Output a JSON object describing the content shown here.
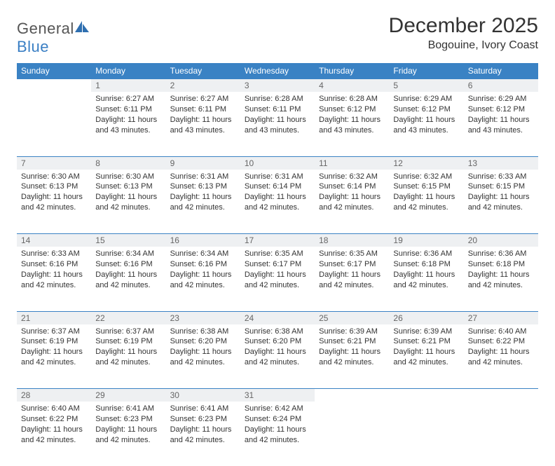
{
  "logo": {
    "text1": "General",
    "text2": "Blue"
  },
  "title": "December 2025",
  "location": "Bogouine, Ivory Coast",
  "colors": {
    "header_bg": "#3a82c4",
    "daynum_bg": "#eef0f2",
    "border": "#3a82c4",
    "text": "#333333"
  },
  "day_headers": [
    "Sunday",
    "Monday",
    "Tuesday",
    "Wednesday",
    "Thursday",
    "Friday",
    "Saturday"
  ],
  "weeks": [
    {
      "nums": [
        "",
        "1",
        "2",
        "3",
        "4",
        "5",
        "6"
      ],
      "cells": [
        null,
        {
          "sunrise": "Sunrise: 6:27 AM",
          "sunset": "Sunset: 6:11 PM",
          "daylight": "Daylight: 11 hours and 43 minutes."
        },
        {
          "sunrise": "Sunrise: 6:27 AM",
          "sunset": "Sunset: 6:11 PM",
          "daylight": "Daylight: 11 hours and 43 minutes."
        },
        {
          "sunrise": "Sunrise: 6:28 AM",
          "sunset": "Sunset: 6:11 PM",
          "daylight": "Daylight: 11 hours and 43 minutes."
        },
        {
          "sunrise": "Sunrise: 6:28 AM",
          "sunset": "Sunset: 6:12 PM",
          "daylight": "Daylight: 11 hours and 43 minutes."
        },
        {
          "sunrise": "Sunrise: 6:29 AM",
          "sunset": "Sunset: 6:12 PM",
          "daylight": "Daylight: 11 hours and 43 minutes."
        },
        {
          "sunrise": "Sunrise: 6:29 AM",
          "sunset": "Sunset: 6:12 PM",
          "daylight": "Daylight: 11 hours and 43 minutes."
        }
      ]
    },
    {
      "nums": [
        "7",
        "8",
        "9",
        "10",
        "11",
        "12",
        "13"
      ],
      "cells": [
        {
          "sunrise": "Sunrise: 6:30 AM",
          "sunset": "Sunset: 6:13 PM",
          "daylight": "Daylight: 11 hours and 42 minutes."
        },
        {
          "sunrise": "Sunrise: 6:30 AM",
          "sunset": "Sunset: 6:13 PM",
          "daylight": "Daylight: 11 hours and 42 minutes."
        },
        {
          "sunrise": "Sunrise: 6:31 AM",
          "sunset": "Sunset: 6:13 PM",
          "daylight": "Daylight: 11 hours and 42 minutes."
        },
        {
          "sunrise": "Sunrise: 6:31 AM",
          "sunset": "Sunset: 6:14 PM",
          "daylight": "Daylight: 11 hours and 42 minutes."
        },
        {
          "sunrise": "Sunrise: 6:32 AM",
          "sunset": "Sunset: 6:14 PM",
          "daylight": "Daylight: 11 hours and 42 minutes."
        },
        {
          "sunrise": "Sunrise: 6:32 AM",
          "sunset": "Sunset: 6:15 PM",
          "daylight": "Daylight: 11 hours and 42 minutes."
        },
        {
          "sunrise": "Sunrise: 6:33 AM",
          "sunset": "Sunset: 6:15 PM",
          "daylight": "Daylight: 11 hours and 42 minutes."
        }
      ]
    },
    {
      "nums": [
        "14",
        "15",
        "16",
        "17",
        "18",
        "19",
        "20"
      ],
      "cells": [
        {
          "sunrise": "Sunrise: 6:33 AM",
          "sunset": "Sunset: 6:16 PM",
          "daylight": "Daylight: 11 hours and 42 minutes."
        },
        {
          "sunrise": "Sunrise: 6:34 AM",
          "sunset": "Sunset: 6:16 PM",
          "daylight": "Daylight: 11 hours and 42 minutes."
        },
        {
          "sunrise": "Sunrise: 6:34 AM",
          "sunset": "Sunset: 6:16 PM",
          "daylight": "Daylight: 11 hours and 42 minutes."
        },
        {
          "sunrise": "Sunrise: 6:35 AM",
          "sunset": "Sunset: 6:17 PM",
          "daylight": "Daylight: 11 hours and 42 minutes."
        },
        {
          "sunrise": "Sunrise: 6:35 AM",
          "sunset": "Sunset: 6:17 PM",
          "daylight": "Daylight: 11 hours and 42 minutes."
        },
        {
          "sunrise": "Sunrise: 6:36 AM",
          "sunset": "Sunset: 6:18 PM",
          "daylight": "Daylight: 11 hours and 42 minutes."
        },
        {
          "sunrise": "Sunrise: 6:36 AM",
          "sunset": "Sunset: 6:18 PM",
          "daylight": "Daylight: 11 hours and 42 minutes."
        }
      ]
    },
    {
      "nums": [
        "21",
        "22",
        "23",
        "24",
        "25",
        "26",
        "27"
      ],
      "cells": [
        {
          "sunrise": "Sunrise: 6:37 AM",
          "sunset": "Sunset: 6:19 PM",
          "daylight": "Daylight: 11 hours and 42 minutes."
        },
        {
          "sunrise": "Sunrise: 6:37 AM",
          "sunset": "Sunset: 6:19 PM",
          "daylight": "Daylight: 11 hours and 42 minutes."
        },
        {
          "sunrise": "Sunrise: 6:38 AM",
          "sunset": "Sunset: 6:20 PM",
          "daylight": "Daylight: 11 hours and 42 minutes."
        },
        {
          "sunrise": "Sunrise: 6:38 AM",
          "sunset": "Sunset: 6:20 PM",
          "daylight": "Daylight: 11 hours and 42 minutes."
        },
        {
          "sunrise": "Sunrise: 6:39 AM",
          "sunset": "Sunset: 6:21 PM",
          "daylight": "Daylight: 11 hours and 42 minutes."
        },
        {
          "sunrise": "Sunrise: 6:39 AM",
          "sunset": "Sunset: 6:21 PM",
          "daylight": "Daylight: 11 hours and 42 minutes."
        },
        {
          "sunrise": "Sunrise: 6:40 AM",
          "sunset": "Sunset: 6:22 PM",
          "daylight": "Daylight: 11 hours and 42 minutes."
        }
      ]
    },
    {
      "nums": [
        "28",
        "29",
        "30",
        "31",
        "",
        "",
        ""
      ],
      "cells": [
        {
          "sunrise": "Sunrise: 6:40 AM",
          "sunset": "Sunset: 6:22 PM",
          "daylight": "Daylight: 11 hours and 42 minutes."
        },
        {
          "sunrise": "Sunrise: 6:41 AM",
          "sunset": "Sunset: 6:23 PM",
          "daylight": "Daylight: 11 hours and 42 minutes."
        },
        {
          "sunrise": "Sunrise: 6:41 AM",
          "sunset": "Sunset: 6:23 PM",
          "daylight": "Daylight: 11 hours and 42 minutes."
        },
        {
          "sunrise": "Sunrise: 6:42 AM",
          "sunset": "Sunset: 6:24 PM",
          "daylight": "Daylight: 11 hours and 42 minutes."
        },
        null,
        null,
        null
      ]
    }
  ]
}
